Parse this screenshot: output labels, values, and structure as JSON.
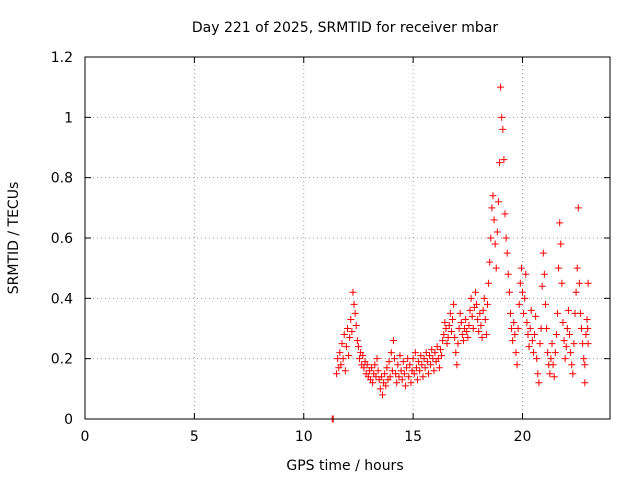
{
  "chart_data": {
    "type": "scatter",
    "title": "Day 221 of 2025, SRMTID for receiver mbar",
    "xlabel": "GPS time / hours",
    "ylabel": "SRMTID / TECUs",
    "xlim": [
      0,
      24
    ],
    "ylim": [
      0,
      1.2
    ],
    "xticks": [
      0,
      5,
      10,
      15,
      20
    ],
    "yticks": [
      0,
      0.2,
      0.4,
      0.6,
      0.8,
      1,
      1.2
    ],
    "xtick_labels": [
      "0",
      "5",
      "10",
      "15",
      "20"
    ],
    "ytick_labels": [
      "0",
      "0.2",
      "0.4",
      "0.6",
      "0.8",
      "1",
      "1.2"
    ],
    "grid": true,
    "marker": "+",
    "color": "#ff0000",
    "series": [
      {
        "name": "SRMTID",
        "points": [
          [
            11.3,
            0.0
          ],
          [
            11.35,
            0.0
          ],
          [
            11.5,
            0.15
          ],
          [
            11.55,
            0.2
          ],
          [
            11.6,
            0.17
          ],
          [
            11.65,
            0.22
          ],
          [
            11.7,
            0.18
          ],
          [
            11.75,
            0.25
          ],
          [
            11.8,
            0.2
          ],
          [
            11.85,
            0.28
          ],
          [
            11.9,
            0.16
          ],
          [
            11.95,
            0.24
          ],
          [
            12.0,
            0.3
          ],
          [
            12.05,
            0.21
          ],
          [
            12.1,
            0.27
          ],
          [
            12.15,
            0.33
          ],
          [
            12.2,
            0.29
          ],
          [
            12.25,
            0.42
          ],
          [
            12.3,
            0.38
          ],
          [
            12.35,
            0.35
          ],
          [
            12.4,
            0.31
          ],
          [
            12.45,
            0.26
          ],
          [
            12.5,
            0.24
          ],
          [
            12.55,
            0.2
          ],
          [
            12.6,
            0.22
          ],
          [
            12.65,
            0.18
          ],
          [
            12.7,
            0.21
          ],
          [
            12.75,
            0.17
          ],
          [
            12.8,
            0.19
          ],
          [
            12.85,
            0.15
          ],
          [
            12.9,
            0.18
          ],
          [
            12.95,
            0.14
          ],
          [
            13.0,
            0.16
          ],
          [
            13.05,
            0.13
          ],
          [
            13.1,
            0.17
          ],
          [
            13.15,
            0.12
          ],
          [
            13.2,
            0.15
          ],
          [
            13.25,
            0.18
          ],
          [
            13.3,
            0.14
          ],
          [
            13.35,
            0.2
          ],
          [
            13.4,
            0.16
          ],
          [
            13.45,
            0.13
          ],
          [
            13.5,
            0.1
          ],
          [
            13.55,
            0.14
          ],
          [
            13.6,
            0.08
          ],
          [
            13.65,
            0.12
          ],
          [
            13.7,
            0.15
          ],
          [
            13.75,
            0.11
          ],
          [
            13.8,
            0.17
          ],
          [
            13.85,
            0.13
          ],
          [
            13.9,
            0.19
          ],
          [
            13.95,
            0.14
          ],
          [
            14.0,
            0.22
          ],
          [
            14.05,
            0.16
          ],
          [
            14.1,
            0.26
          ],
          [
            14.15,
            0.2
          ],
          [
            14.2,
            0.15
          ],
          [
            14.25,
            0.12
          ],
          [
            14.3,
            0.18
          ],
          [
            14.35,
            0.14
          ],
          [
            14.4,
            0.21
          ],
          [
            14.45,
            0.16
          ],
          [
            14.5,
            0.13
          ],
          [
            14.55,
            0.19
          ],
          [
            14.6,
            0.15
          ],
          [
            14.65,
            0.11
          ],
          [
            14.7,
            0.17
          ],
          [
            14.75,
            0.2
          ],
          [
            14.8,
            0.14
          ],
          [
            14.85,
            0.18
          ],
          [
            14.9,
            0.12
          ],
          [
            14.95,
            0.16
          ],
          [
            15.0,
            0.2
          ],
          [
            15.05,
            0.15
          ],
          [
            15.1,
            0.22
          ],
          [
            15.15,
            0.17
          ],
          [
            15.2,
            0.13
          ],
          [
            15.25,
            0.19
          ],
          [
            15.3,
            0.16
          ],
          [
            15.35,
            0.21
          ],
          [
            15.4,
            0.18
          ],
          [
            15.45,
            0.14
          ],
          [
            15.5,
            0.2
          ],
          [
            15.55,
            0.17
          ],
          [
            15.6,
            0.22
          ],
          [
            15.65,
            0.19
          ],
          [
            15.7,
            0.15
          ],
          [
            15.75,
            0.21
          ],
          [
            15.8,
            0.18
          ],
          [
            15.85,
            0.23
          ],
          [
            15.9,
            0.2
          ],
          [
            15.95,
            0.16
          ],
          [
            16.0,
            0.22
          ],
          [
            16.05,
            0.19
          ],
          [
            16.1,
            0.24
          ],
          [
            16.15,
            0.2
          ],
          [
            16.2,
            0.17
          ],
          [
            16.25,
            0.23
          ],
          [
            16.3,
            0.21
          ],
          [
            16.35,
            0.26
          ],
          [
            16.4,
            0.28
          ],
          [
            16.45,
            0.32
          ],
          [
            16.5,
            0.3
          ],
          [
            16.55,
            0.25
          ],
          [
            16.6,
            0.27
          ],
          [
            16.65,
            0.31
          ],
          [
            16.7,
            0.35
          ],
          [
            16.75,
            0.29
          ],
          [
            16.8,
            0.33
          ],
          [
            16.85,
            0.38
          ],
          [
            16.9,
            0.27
          ],
          [
            16.95,
            0.22
          ],
          [
            17.0,
            0.18
          ],
          [
            17.05,
            0.25
          ],
          [
            17.1,
            0.3
          ],
          [
            17.15,
            0.35
          ],
          [
            17.2,
            0.32
          ],
          [
            17.25,
            0.28
          ],
          [
            17.3,
            0.26
          ],
          [
            17.35,
            0.3
          ],
          [
            17.4,
            0.33
          ],
          [
            17.45,
            0.29
          ],
          [
            17.5,
            0.27
          ],
          [
            17.55,
            0.31
          ],
          [
            17.6,
            0.36
          ],
          [
            17.65,
            0.4
          ],
          [
            17.7,
            0.34
          ],
          [
            17.75,
            0.3
          ],
          [
            17.8,
            0.37
          ],
          [
            17.85,
            0.42
          ],
          [
            17.9,
            0.38
          ],
          [
            17.95,
            0.33
          ],
          [
            18.0,
            0.29
          ],
          [
            18.05,
            0.35
          ],
          [
            18.1,
            0.31
          ],
          [
            18.15,
            0.27
          ],
          [
            18.2,
            0.36
          ],
          [
            18.25,
            0.4
          ],
          [
            18.3,
            0.33
          ],
          [
            18.35,
            0.28
          ],
          [
            18.4,
            0.38
          ],
          [
            18.45,
            0.45
          ],
          [
            18.5,
            0.52
          ],
          [
            18.55,
            0.6
          ],
          [
            18.6,
            0.7
          ],
          [
            18.65,
            0.74
          ],
          [
            18.7,
            0.66
          ],
          [
            18.75,
            0.58
          ],
          [
            18.8,
            0.5
          ],
          [
            18.85,
            0.62
          ],
          [
            18.9,
            0.72
          ],
          [
            18.95,
            0.85
          ],
          [
            19.0,
            1.1
          ],
          [
            19.05,
            1.0
          ],
          [
            19.1,
            0.96
          ],
          [
            19.15,
            0.86
          ],
          [
            19.2,
            0.68
          ],
          [
            19.25,
            0.6
          ],
          [
            19.3,
            0.55
          ],
          [
            19.35,
            0.48
          ],
          [
            19.4,
            0.42
          ],
          [
            19.45,
            0.35
          ],
          [
            19.5,
            0.3
          ],
          [
            19.55,
            0.26
          ],
          [
            19.6,
            0.32
          ],
          [
            19.65,
            0.28
          ],
          [
            19.7,
            0.22
          ],
          [
            19.75,
            0.18
          ],
          [
            19.8,
            0.3
          ],
          [
            19.85,
            0.38
          ],
          [
            19.9,
            0.45
          ],
          [
            19.95,
            0.5
          ],
          [
            20.0,
            0.42
          ],
          [
            20.05,
            0.35
          ],
          [
            20.1,
            0.4
          ],
          [
            20.15,
            0.48
          ],
          [
            20.2,
            0.32
          ],
          [
            20.25,
            0.28
          ],
          [
            20.3,
            0.24
          ],
          [
            20.35,
            0.3
          ],
          [
            20.4,
            0.36
          ],
          [
            20.45,
            0.26
          ],
          [
            20.5,
            0.22
          ],
          [
            20.55,
            0.28
          ],
          [
            20.6,
            0.34
          ],
          [
            20.65,
            0.2
          ],
          [
            20.7,
            0.15
          ],
          [
            20.75,
            0.12
          ],
          [
            20.8,
            0.25
          ],
          [
            20.85,
            0.3
          ],
          [
            20.9,
            0.44
          ],
          [
            20.95,
            0.55
          ],
          [
            21.0,
            0.48
          ],
          [
            21.05,
            0.38
          ],
          [
            21.1,
            0.3
          ],
          [
            21.15,
            0.22
          ],
          [
            21.2,
            0.18
          ],
          [
            21.25,
            0.15
          ],
          [
            21.3,
            0.2
          ],
          [
            21.35,
            0.25
          ],
          [
            21.4,
            0.18
          ],
          [
            21.45,
            0.14
          ],
          [
            21.5,
            0.22
          ],
          [
            21.55,
            0.28
          ],
          [
            21.6,
            0.35
          ],
          [
            21.65,
            0.5
          ],
          [
            21.7,
            0.65
          ],
          [
            21.75,
            0.58
          ],
          [
            21.8,
            0.45
          ],
          [
            21.85,
            0.32
          ],
          [
            21.9,
            0.26
          ],
          [
            21.95,
            0.2
          ],
          [
            22.0,
            0.24
          ],
          [
            22.05,
            0.3
          ],
          [
            22.1,
            0.36
          ],
          [
            22.15,
            0.28
          ],
          [
            22.2,
            0.22
          ],
          [
            22.25,
            0.18
          ],
          [
            22.3,
            0.15
          ],
          [
            22.35,
            0.25
          ],
          [
            22.4,
            0.35
          ],
          [
            22.45,
            0.42
          ],
          [
            22.5,
            0.5
          ],
          [
            22.55,
            0.7
          ],
          [
            22.6,
            0.45
          ],
          [
            22.65,
            0.35
          ],
          [
            22.7,
            0.3
          ],
          [
            22.75,
            0.25
          ],
          [
            22.8,
            0.2
          ],
          [
            22.85,
            0.12
          ],
          [
            22.9,
            0.28
          ],
          [
            22.95,
            0.33
          ],
          [
            23.0,
            0.45
          ],
          [
            22.98,
            0.3
          ],
          [
            23.0,
            0.25
          ],
          [
            22.85,
            0.18
          ]
        ]
      }
    ]
  }
}
